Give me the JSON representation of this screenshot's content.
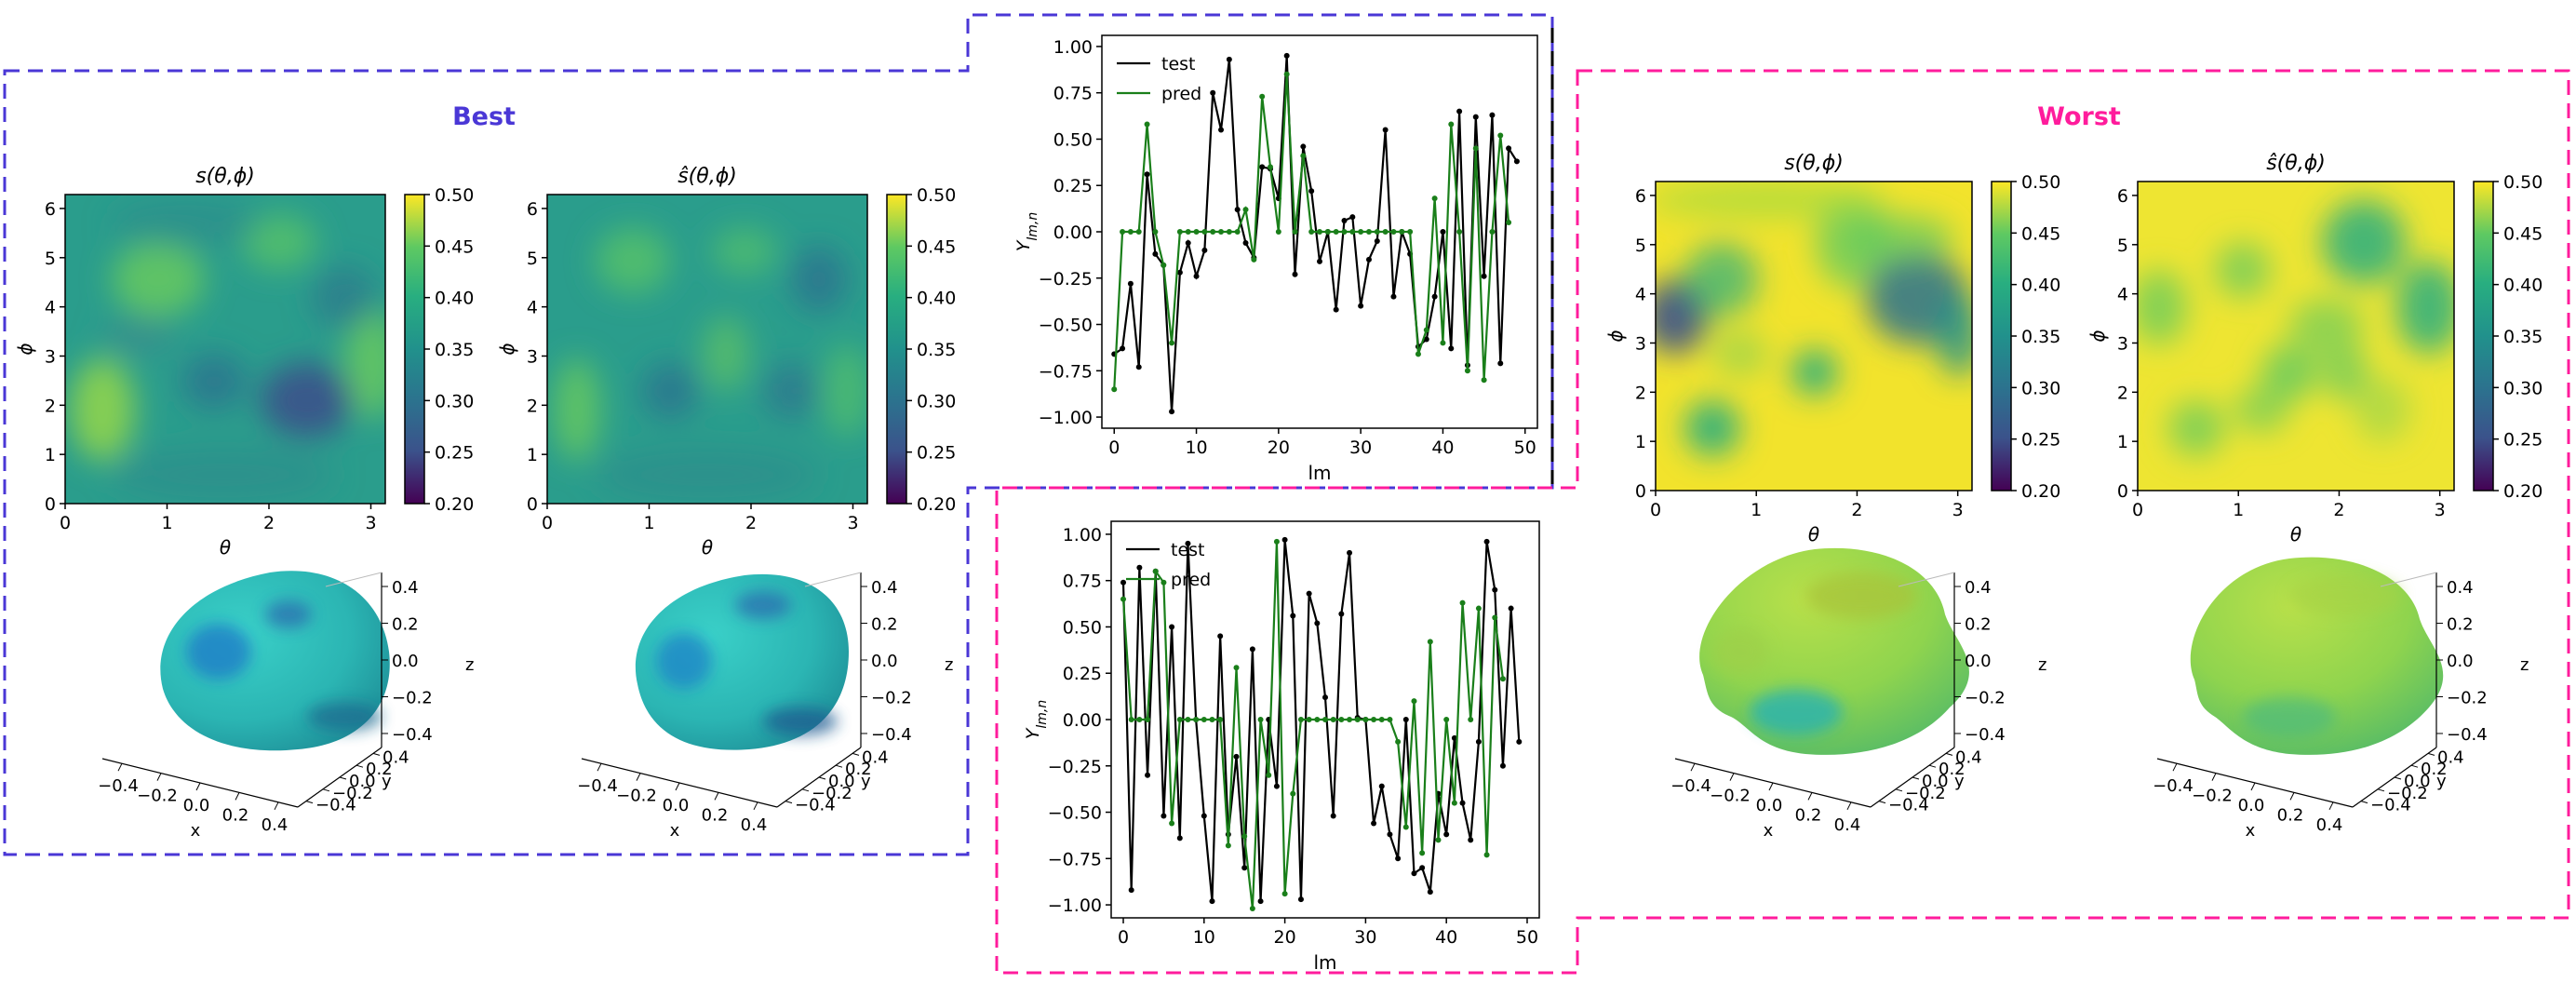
{
  "colors": {
    "best": "#4a37d6",
    "worst": "#ff1c9c",
    "test": "#000000",
    "pred": "#1a7f1a"
  },
  "best": {
    "title": "Best",
    "heatmaps": [
      {
        "title": "s(θ,ϕ)",
        "xlabel": "θ",
        "ylabel": "ϕ"
      },
      {
        "title": "ŝ(θ,ϕ)",
        "xlabel": "θ",
        "ylabel": "ϕ"
      }
    ],
    "surfaces": [
      {
        "x_label": "x",
        "y_label": "y",
        "z_label": "z"
      },
      {
        "x_label": "x",
        "y_label": "y",
        "z_label": "z"
      }
    ]
  },
  "worst": {
    "title": "Worst",
    "heatmaps": [
      {
        "title": "s(θ,ϕ)",
        "xlabel": "θ",
        "ylabel": "ϕ"
      },
      {
        "title": "ŝ(θ,ϕ)",
        "xlabel": "θ",
        "ylabel": "ϕ"
      }
    ],
    "surfaces": [
      {
        "x_label": "x",
        "y_label": "y",
        "z_label": "z"
      },
      {
        "x_label": "x",
        "y_label": "y",
        "z_label": "z"
      }
    ]
  },
  "heatmap_axes": {
    "x_ticks": [
      "0",
      "1",
      "2",
      "3"
    ],
    "y_ticks": [
      "0",
      "1",
      "2",
      "3",
      "4",
      "5",
      "6"
    ],
    "colorbar_ticks": [
      "0.20",
      "0.25",
      "0.30",
      "0.35",
      "0.40",
      "0.45",
      "0.50"
    ]
  },
  "surface_axes": {
    "x_ticks": [
      "−0.4",
      "−0.2",
      "0.0",
      "0.2",
      "0.4"
    ],
    "y_ticks": [
      "−0.4",
      "−0.2",
      "0.0",
      "0.2",
      "0.4"
    ],
    "z_ticks": [
      "−0.4",
      "−0.2",
      "0.0",
      "0.2",
      "0.4"
    ]
  },
  "chart_data": [
    {
      "type": "line",
      "panel": "best-coefficients",
      "title": "",
      "xlabel": "lm",
      "ylabel": "Y_{lm,n}",
      "xlim": [
        -1.5,
        51.5
      ],
      "ylim": [
        -1.06,
        1.06
      ],
      "x_ticks": [
        "0",
        "10",
        "20",
        "30",
        "40",
        "50"
      ],
      "y_ticks": [
        "1.00",
        "0.75",
        "0.50",
        "0.25",
        "0.00",
        "−0.25",
        "−0.50",
        "−0.75",
        "−1.00"
      ],
      "legend": [
        "test",
        "pred"
      ],
      "legend_position": "top-left",
      "series": [
        {
          "name": "test",
          "values": [
            -0.66,
            -0.63,
            -0.28,
            -0.73,
            0.31,
            -0.12,
            -0.18,
            -0.97,
            -0.22,
            -0.06,
            -0.24,
            -0.1,
            0.75,
            0.55,
            0.93,
            0.12,
            -0.06,
            -0.14,
            0.35,
            0.34,
            0.18,
            0.95,
            -0.23,
            0.46,
            0.22,
            -0.16,
            0.0,
            -0.42,
            0.06,
            0.08,
            -0.4,
            -0.15,
            -0.05,
            0.55,
            -0.35,
            0.0,
            -0.12,
            -0.62,
            -0.58,
            -0.35,
            0.0,
            -0.63,
            0.65,
            -0.72,
            0.62,
            -0.24,
            0.63,
            -0.71,
            0.45,
            0.38
          ]
        },
        {
          "name": "pred",
          "values": [
            -0.85,
            0.0,
            0.0,
            0.0,
            0.58,
            0.0,
            -0.18,
            -0.6,
            0.0,
            0.0,
            0.0,
            0.0,
            0.0,
            0.0,
            0.0,
            0.0,
            0.12,
            -0.15,
            0.73,
            0.35,
            0.0,
            0.85,
            0.0,
            0.41,
            0.0,
            0.0,
            0.0,
            0.0,
            0.0,
            0.0,
            0.0,
            0.0,
            0.0,
            0.0,
            0.0,
            0.0,
            0.0,
            -0.66,
            -0.53,
            0.18,
            -0.6,
            0.58,
            0.0,
            -0.75,
            0.45,
            -0.8,
            0.0,
            0.52,
            0.05
          ]
        }
      ]
    },
    {
      "type": "line",
      "panel": "worst-coefficients",
      "title": "",
      "xlabel": "lm",
      "ylabel": "Y_{lm,n}",
      "xlim": [
        -1.5,
        51.5
      ],
      "ylim": [
        -1.07,
        1.07
      ],
      "x_ticks": [
        "0",
        "10",
        "20",
        "30",
        "40",
        "50"
      ],
      "y_ticks": [
        "1.00",
        "0.75",
        "0.50",
        "0.25",
        "0.00",
        "−0.25",
        "−0.50",
        "−0.75",
        "−1.00"
      ],
      "legend": [
        "test",
        "pred"
      ],
      "legend_position": "top-left",
      "series": [
        {
          "name": "test",
          "values": [
            0.74,
            -0.92,
            0.82,
            -0.3,
            0.8,
            -0.52,
            0.5,
            -0.64,
            0.95,
            0.0,
            -0.52,
            -0.98,
            0.45,
            -0.62,
            -0.2,
            -0.8,
            0.38,
            -0.98,
            0.0,
            -0.36,
            0.97,
            0.56,
            -0.97,
            0.68,
            0.52,
            0.12,
            -0.52,
            0.57,
            0.9,
            0.01,
            0.0,
            -0.56,
            -0.36,
            -0.62,
            -0.75,
            0.0,
            -0.83,
            -0.8,
            -0.93,
            -0.4,
            -0.62,
            -0.1,
            -0.45,
            -0.65,
            -0.12,
            0.96,
            0.7,
            -0.25,
            0.6,
            -0.12
          ]
        },
        {
          "name": "pred",
          "values": [
            0.65,
            0.0,
            0.0,
            0.0,
            0.8,
            0.74,
            -0.56,
            0.0,
            0.0,
            0.0,
            0.0,
            0.0,
            0.0,
            -0.68,
            0.28,
            -0.63,
            -1.02,
            0.0,
            -0.3,
            0.96,
            -0.94,
            -0.4,
            0.0,
            0.0,
            0.0,
            0.0,
            0.0,
            0.0,
            0.0,
            0.0,
            0.0,
            0.0,
            0.0,
            0.0,
            -0.12,
            -0.58,
            0.1,
            -0.72,
            0.42,
            -0.65,
            0.0,
            -0.45,
            0.63,
            0.0,
            0.6,
            -0.73,
            0.55,
            0.22
          ]
        }
      ]
    }
  ]
}
